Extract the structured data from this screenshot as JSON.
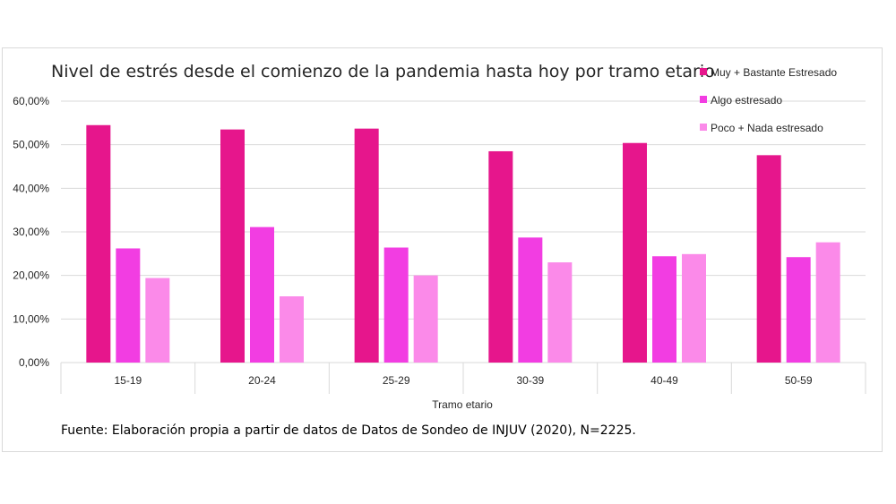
{
  "chart_data": {
    "type": "bar",
    "title": "Nivel de estrés desde el comienzo de la pandemia hasta hoy por tramo etario",
    "xlabel": "Tramo etario",
    "ylabel": "",
    "categories": [
      "15-19",
      "20-24",
      "25-29",
      "30-39",
      "40-49",
      "50-59"
    ],
    "series": [
      {
        "name": "Muy + Bastante Estresado",
        "color": "#e6168c",
        "values": [
          54.5,
          53.5,
          53.7,
          48.5,
          50.4,
          47.6
        ]
      },
      {
        "name": "Algo estresado",
        "color": "#f23de2",
        "values": [
          26.2,
          31.1,
          26.4,
          28.7,
          24.4,
          24.2
        ]
      },
      {
        "name": "Poco + Nada estresado",
        "color": "#fb8ae9",
        "values": [
          19.4,
          15.2,
          20.0,
          23.0,
          24.9,
          27.6
        ]
      }
    ],
    "ylim": [
      0,
      60
    ],
    "yticks": [
      "0,00%",
      "10,00%",
      "20,00%",
      "30,00%",
      "40,00%",
      "50,00%",
      "60,00%"
    ],
    "grid": true,
    "legend_position": "right",
    "source": "Fuente: Elaboración propia a partir de datos de Datos de Sondeo de INJUV (2020), N=2225."
  },
  "colors": {
    "gridline": "#d9d9d9",
    "text": "#262626"
  }
}
